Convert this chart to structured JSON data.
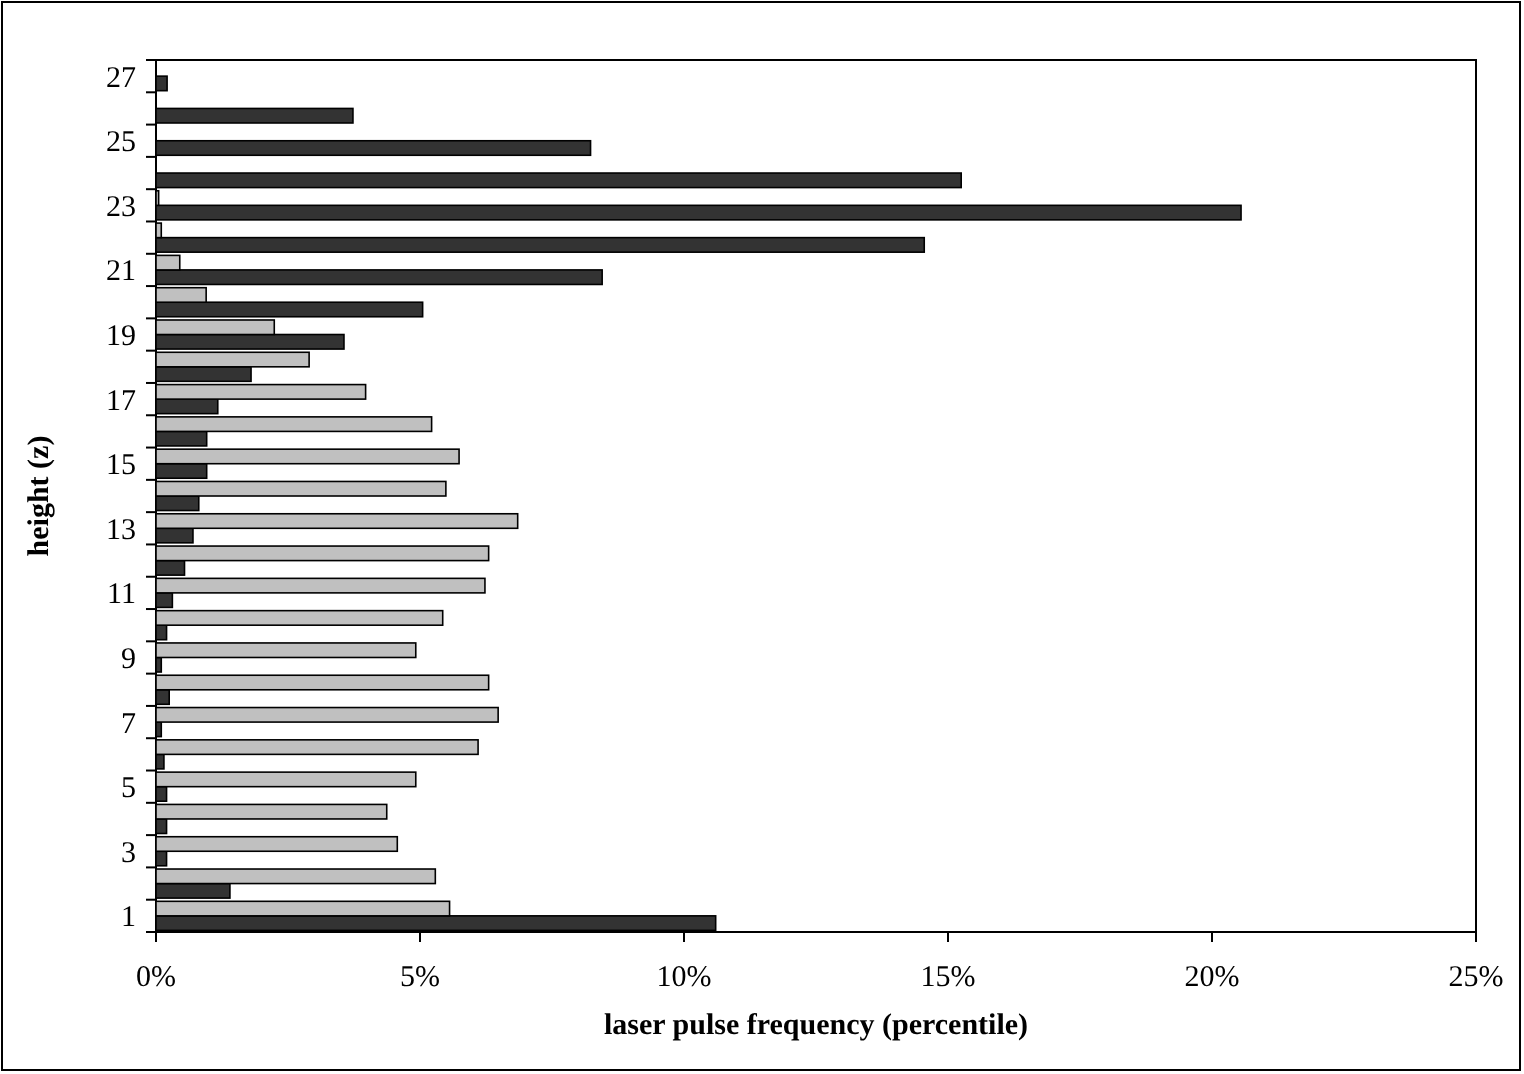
{
  "chart_data": {
    "type": "bar",
    "orientation": "horizontal",
    "xlabel": "laser pulse frequency (percentile)",
    "ylabel": "height (z)",
    "categories": [
      "27",
      null,
      "25",
      null,
      "23",
      null,
      "21",
      null,
      "19",
      null,
      "17",
      null,
      "15",
      null,
      "13",
      null,
      "11",
      null,
      "9",
      null,
      "7",
      null,
      "5",
      null,
      "3",
      null,
      "1"
    ],
    "series": [
      {
        "color": "#333333",
        "values": [
          0.21,
          3.73,
          8.23,
          15.25,
          20.55,
          14.55,
          8.45,
          5.05,
          3.56,
          1.8,
          1.17,
          0.96,
          0.96,
          0.81,
          0.7,
          0.54,
          0.31,
          0.2,
          0.1,
          0.25,
          0.1,
          0.15,
          0.2,
          0.2,
          0.2,
          1.4,
          10.6
        ]
      },
      {
        "color": "#c0c0c0",
        "values": [
          0,
          0,
          0,
          0,
          0.05,
          0.1,
          0.45,
          0.95,
          2.24,
          2.9,
          3.97,
          5.22,
          5.74,
          5.49,
          6.85,
          6.3,
          6.23,
          5.43,
          4.92,
          6.3,
          6.48,
          6.1,
          4.92,
          4.37,
          4.57,
          5.29,
          5.56
        ]
      }
    ],
    "xlim": [
      0,
      25
    ],
    "xticks": [
      {
        "value": 0,
        "label": "0%"
      },
      {
        "value": 5,
        "label": "5%"
      },
      {
        "value": 10,
        "label": "10%"
      },
      {
        "value": 15,
        "label": "15%"
      },
      {
        "value": 20,
        "label": "20%"
      },
      {
        "value": 25,
        "label": "25%"
      }
    ],
    "grid": false
  }
}
